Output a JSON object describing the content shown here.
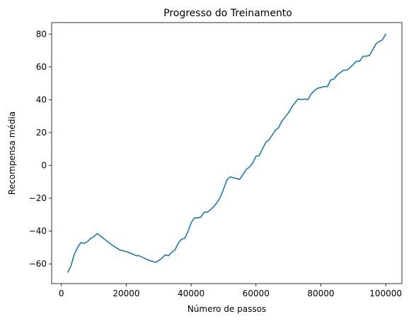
{
  "chart_data": {
    "type": "line",
    "title": "Progresso do Treinamento",
    "xlabel": "Número de passos",
    "ylabel": "Recompensa média",
    "xlim": [
      -3000,
      105000
    ],
    "ylim": [
      -72,
      87
    ],
    "x_ticks": [
      0,
      20000,
      40000,
      60000,
      80000,
      100000
    ],
    "x_tick_labels": [
      "0",
      "20000",
      "40000",
      "60000",
      "80000",
      "100000"
    ],
    "y_ticks": [
      -60,
      -40,
      -20,
      0,
      20,
      40,
      60,
      80
    ],
    "y_tick_labels": [
      "−60",
      "−40",
      "−20",
      "0",
      "20",
      "40",
      "60",
      "80"
    ],
    "grid": false,
    "series": [
      {
        "color": "#1f77b4",
        "x": [
          2000,
          3000,
          4000,
          5000,
          6000,
          7000,
          8000,
          9000,
          10000,
          11000,
          12000,
          14000,
          16000,
          18000,
          20000,
          22000,
          23000,
          24000,
          26000,
          28000,
          29000,
          30000,
          31000,
          32000,
          33000,
          34000,
          35000,
          36000,
          37000,
          38000,
          39000,
          40000,
          41000,
          42000,
          43000,
          44000,
          45000,
          46000,
          47000,
          48000,
          49000,
          50000,
          51000,
          52000,
          53000,
          54000,
          55000,
          56000,
          57000,
          58000,
          59000,
          60000,
          61000,
          62000,
          63000,
          64000,
          65000,
          66000,
          67000,
          68000,
          69000,
          70000,
          71000,
          72000,
          73000,
          74000,
          75000,
          76000,
          77000,
          78000,
          79000,
          80000,
          81000,
          82000,
          83000,
          84000,
          85000,
          86000,
          87000,
          88000,
          89000,
          90000,
          91000,
          92000,
          93000,
          94000,
          95000,
          96000,
          97000,
          98000,
          99000,
          100000
        ],
        "y": [
          -65,
          -61,
          -54,
          -50,
          -47,
          -47.5,
          -46.5,
          -44.5,
          -43.5,
          -41.5,
          -43,
          -46,
          -49,
          -51.5,
          -52.5,
          -54,
          -55,
          -55,
          -57,
          -58.5,
          -59,
          -58,
          -56.5,
          -54.5,
          -55,
          -53,
          -51.5,
          -47.5,
          -45,
          -44.5,
          -40.5,
          -35,
          -32,
          -32,
          -31.5,
          -28.5,
          -28.5,
          -27,
          -25,
          -22.5,
          -19.5,
          -14.5,
          -9,
          -7,
          -7.5,
          -8,
          -8.5,
          -5.5,
          -2.5,
          -1,
          1.5,
          5.5,
          6,
          10,
          14,
          15.5,
          18.5,
          21.5,
          23,
          27,
          29.5,
          32,
          35.5,
          38,
          40.5,
          40,
          40.5,
          40,
          43.5,
          45.5,
          47,
          47.5,
          48,
          48,
          52,
          52.5,
          55,
          56.5,
          58,
          58,
          59.5,
          61.5,
          63.5,
          63.5,
          66.5,
          66.5,
          67,
          70.5,
          74,
          75.5,
          76.5,
          80
        ]
      }
    ]
  }
}
